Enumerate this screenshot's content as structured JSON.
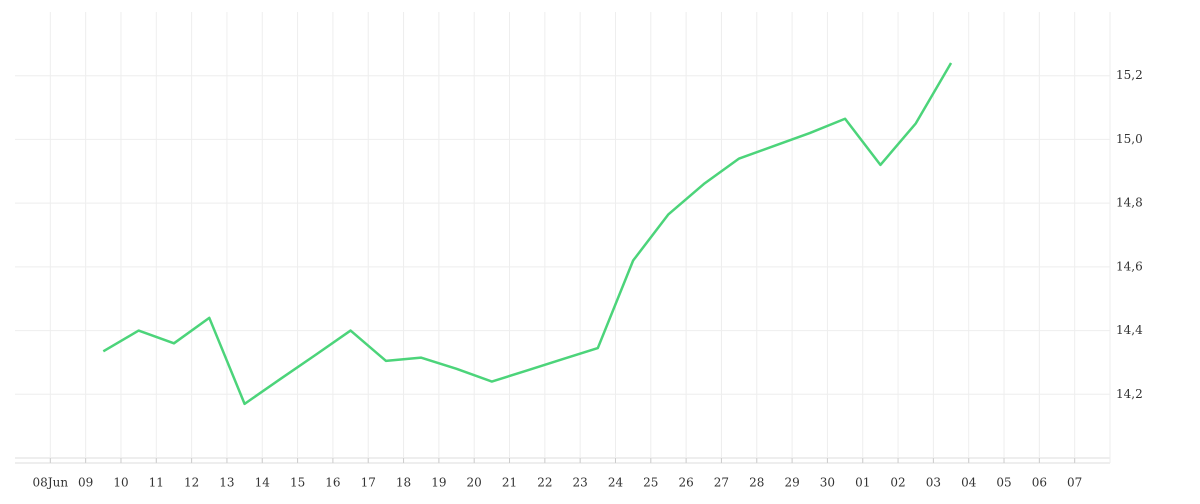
{
  "chart_data": {
    "type": "line",
    "categories": [
      "08Jun",
      "09",
      "10",
      "11",
      "12",
      "13",
      "14",
      "15",
      "16",
      "17",
      "18",
      "19",
      "20",
      "21",
      "22",
      "23",
      "24",
      "25",
      "26",
      "27",
      "28",
      "29",
      "30",
      "01",
      "02",
      "03",
      "04",
      "05",
      "06",
      "07"
    ],
    "series": [
      {
        "color": "#4cd47a",
        "values": [
          null,
          14.335,
          14.4,
          14.36,
          14.44,
          14.17,
          14.247,
          14.323,
          14.4,
          14.305,
          14.315,
          14.28,
          14.24,
          14.275,
          14.31,
          14.345,
          14.62,
          14.765,
          14.86,
          14.94,
          14.98,
          15.02,
          15.065,
          14.92,
          15.05,
          15.24,
          null,
          null,
          null,
          null
        ]
      }
    ],
    "ylim": [
      14.0,
      15.4
    ],
    "yticks": [
      {
        "value": 14.2,
        "label": "14,2"
      },
      {
        "value": 14.4,
        "label": "14,4"
      },
      {
        "value": 14.6,
        "label": "14,6"
      },
      {
        "value": 14.8,
        "label": "14,8"
      },
      {
        "value": 15.0,
        "label": "15,0"
      },
      {
        "value": 15.2,
        "label": "15,2"
      }
    ],
    "grid": true
  }
}
